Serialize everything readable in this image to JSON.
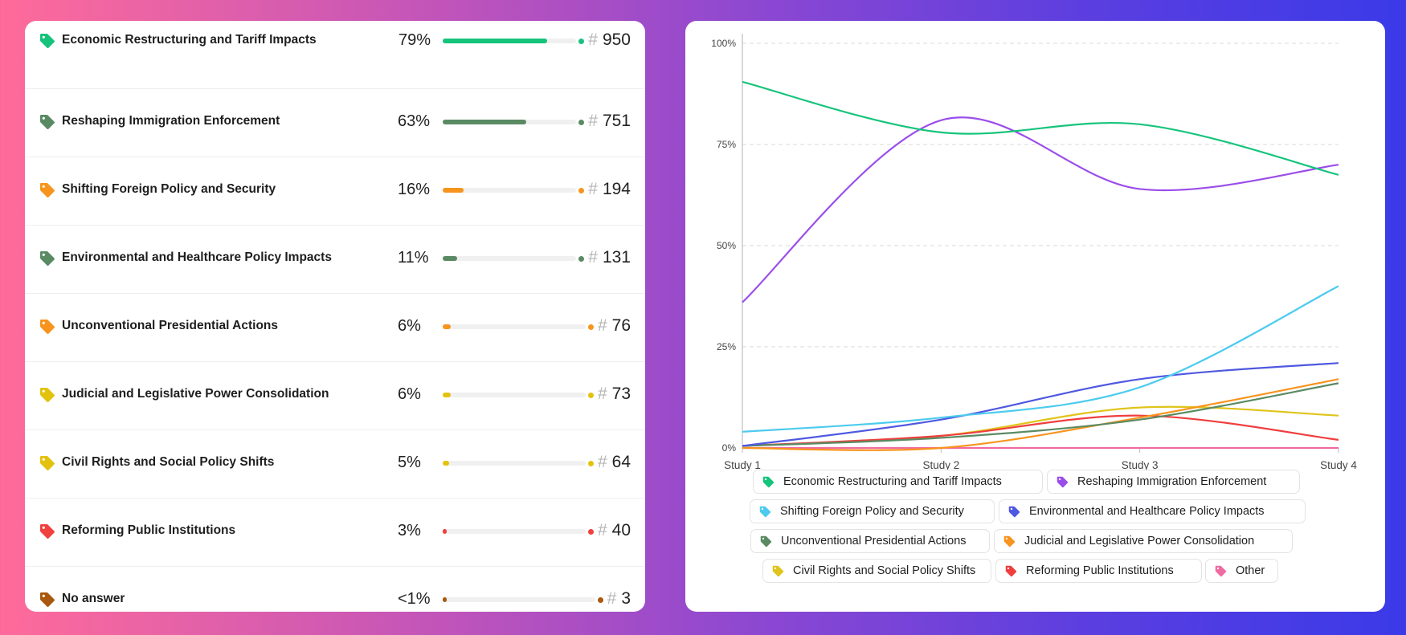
{
  "topics": [
    {
      "label": "Economic Restructuring and Tariff Impacts",
      "pct_text": "79%",
      "count": "950",
      "fraction": 0.79,
      "color": "#15c37a"
    },
    {
      "label": "Reshaping Immigration Enforcement",
      "pct_text": "63%",
      "count": "751",
      "fraction": 0.63,
      "color": "#5a8a63"
    },
    {
      "label": "Shifting Foreign Policy and Security",
      "pct_text": "16%",
      "count": "194",
      "fraction": 0.16,
      "color": "#f7941d"
    },
    {
      "label": "Environmental and Healthcare Policy Impacts",
      "pct_text": "11%",
      "count": "131",
      "fraction": 0.11,
      "color": "#5a8a63"
    },
    {
      "label": "Unconventional Presidential Actions",
      "pct_text": "6%",
      "count": "76",
      "fraction": 0.06,
      "color": "#f7941d"
    },
    {
      "label": "Judicial and Legislative Power Consolidation",
      "pct_text": "6%",
      "count": "73",
      "fraction": 0.06,
      "color": "#e3c20e"
    },
    {
      "label": "Civil Rights and Social Policy Shifts",
      "pct_text": "5%",
      "count": "64",
      "fraction": 0.05,
      "color": "#e3c20e"
    },
    {
      "label": "Reforming Public Institutions",
      "pct_text": "3%",
      "count": "40",
      "fraction": 0.03,
      "color": "#f0413f"
    },
    {
      "label": "No answer",
      "pct_text": "<1%",
      "count": "3",
      "fraction": 0.003,
      "color": "#a8590f"
    }
  ],
  "hash_symbol": "#",
  "icons": {
    "topic_tag": "tag-icon",
    "legend_tag": "tag-icon"
  },
  "chart_data": {
    "type": "line",
    "x": [
      "Study 1",
      "Study 2",
      "Study 3",
      "Study 4"
    ],
    "ylim": [
      0,
      100
    ],
    "yticks": [
      0,
      25,
      50,
      75,
      100
    ],
    "ytick_labels": [
      "0%",
      "25%",
      "50%",
      "75%",
      "100%"
    ],
    "grid": true,
    "series": [
      {
        "name": "Economic Restructuring and Tariff Impacts",
        "color": "#16c47c",
        "values": [
          90.5,
          78,
          80,
          67.5
        ]
      },
      {
        "name": "Reshaping Immigration Enforcement",
        "color": "#9b4dea",
        "values": [
          36,
          81,
          64,
          70
        ]
      },
      {
        "name": "Shifting Foreign Policy and Security",
        "color": "#4dcbee",
        "values": [
          4,
          7.5,
          15,
          40
        ]
      },
      {
        "name": "Environmental and Healthcare Policy Impacts",
        "color": "#4f58e0",
        "values": [
          0.5,
          7,
          17,
          21
        ]
      },
      {
        "name": "Unconventional Presidential Actions",
        "color": "#5a8a63",
        "values": [
          0.5,
          2.5,
          7,
          16
        ]
      },
      {
        "name": "Judicial and Legislative Power Consolidation",
        "color": "#f7941d",
        "values": [
          0,
          0,
          7.5,
          17
        ]
      },
      {
        "name": "Civil Rights and Social Policy Shifts",
        "color": "#e0c41a",
        "values": [
          0.5,
          3,
          10,
          8
        ]
      },
      {
        "name": "Reforming Public Institutions",
        "color": "#ef3e3e",
        "values": [
          0.5,
          3,
          8,
          2
        ]
      },
      {
        "name": "Other",
        "color": "#f06ba2",
        "values": [
          0,
          0,
          0,
          0
        ]
      }
    ],
    "legend": [
      "Economic Restructuring and Tariff Impacts",
      "Reshaping Immigration Enforcement",
      "Shifting Foreign Policy and Security",
      "Environmental and Healthcare Policy Impacts",
      "Unconventional Presidential Actions",
      "Judicial and Legislative Power Consolidation",
      "Civil Rights and Social Policy Shifts",
      "Reforming Public Institutions",
      "Other"
    ],
    "legend_placement": "bottom"
  }
}
